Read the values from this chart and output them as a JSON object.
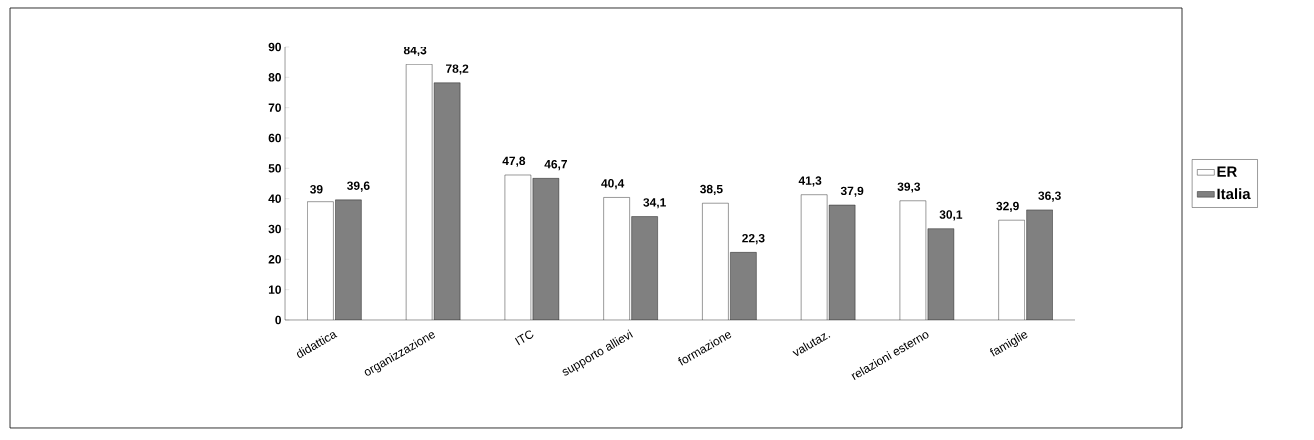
{
  "chart_data": {
    "type": "bar",
    "categories": [
      "didattica",
      "organizzazione",
      "ITC",
      "supporto allievi",
      "formazione",
      "valutaz.",
      "relazioni esterno",
      "famiglie"
    ],
    "series": [
      {
        "name": "ER",
        "color": "#ffffff",
        "values": [
          39,
          84.3,
          47.8,
          40.4,
          38.5,
          41.3,
          39.3,
          32.9
        ],
        "value_labels": [
          "39",
          "84,3",
          "47,8",
          "40,4",
          "38,5",
          "41,3",
          "39,3",
          "32,9"
        ]
      },
      {
        "name": "Italia",
        "color": "#808080",
        "values": [
          39.6,
          78.2,
          46.7,
          34.1,
          22.3,
          37.9,
          30.1,
          36.3
        ],
        "value_labels": [
          "39,6",
          "78,2",
          "46,7",
          "34,1",
          "22,3",
          "37,9",
          "30,1",
          "36,3"
        ]
      }
    ],
    "ylim": [
      0,
      90
    ],
    "yticks": [
      0,
      10,
      20,
      30,
      40,
      50,
      60,
      70,
      80,
      90
    ],
    "legend": "right",
    "grid": false
  }
}
